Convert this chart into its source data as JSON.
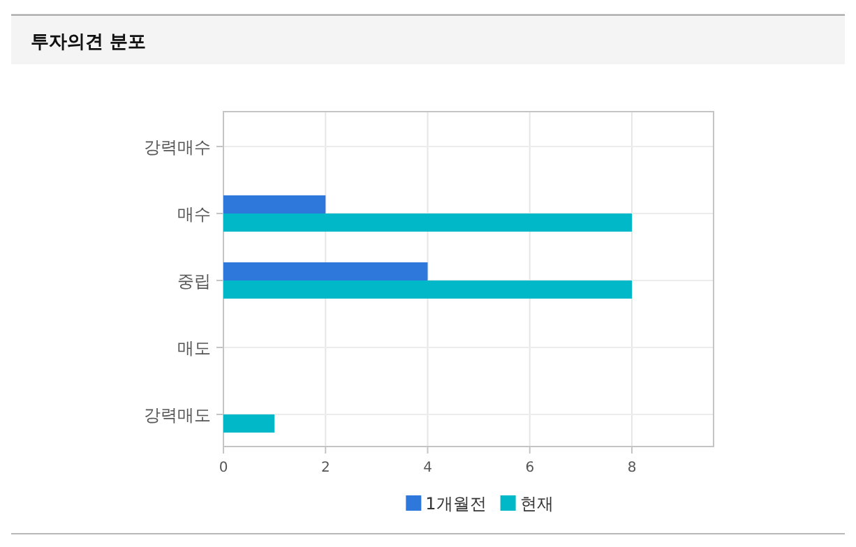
{
  "chart_data": {
    "type": "bar",
    "orientation": "horizontal",
    "title": "투자의견 분포",
    "categories": [
      "강력매수",
      "매수",
      "중립",
      "매도",
      "강력매도"
    ],
    "series": [
      {
        "name": "1개월전",
        "color": "#2e78dc",
        "values": [
          0,
          2,
          4,
          0,
          0
        ]
      },
      {
        "name": "현재",
        "color": "#00b8c8",
        "values": [
          0,
          8,
          8,
          0,
          1
        ]
      }
    ],
    "xlim": [
      0,
      9.6
    ],
    "xticks": [
      0,
      2,
      4,
      6,
      8
    ],
    "grid": true,
    "legend": "bottom"
  }
}
